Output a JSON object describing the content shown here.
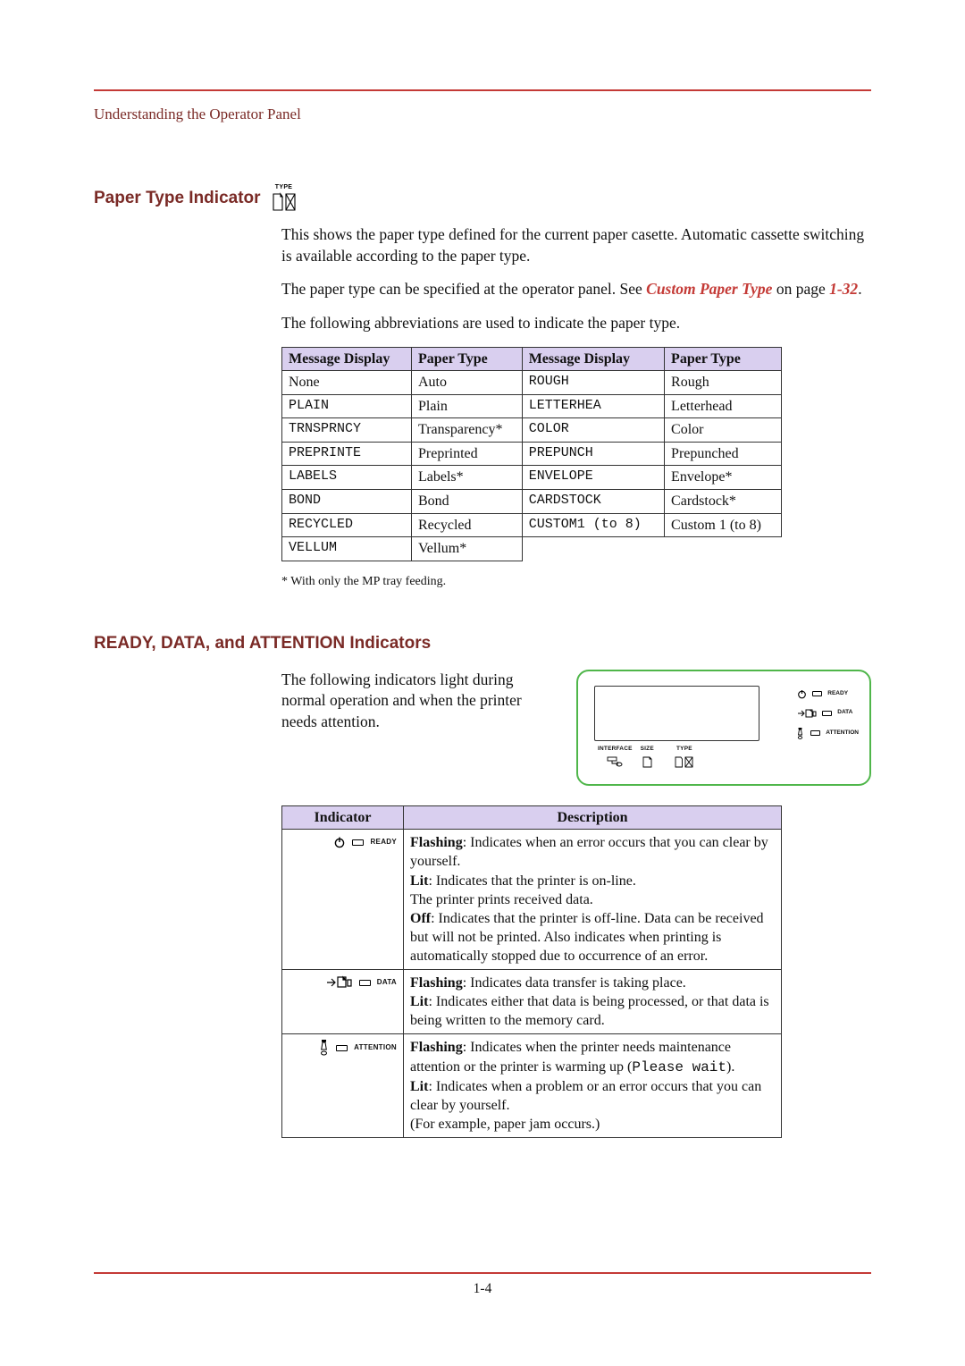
{
  "breadcrumb": "Understanding the Operator Panel",
  "section1": {
    "heading": "Paper Type Indicator",
    "icon_label": "TYPE",
    "p1": "This shows the paper type defined for the current paper casette. Automatic cassette switching is available according to the paper type.",
    "p2_a": "The paper type can be specified at the operator panel. See ",
    "p2_xref": "Custom Paper Type",
    "p2_b": " on page ",
    "p2_page": "1-32",
    "p2_c": ".",
    "p3": "The following abbreviations are used to indicate the paper type."
  },
  "paper_table": {
    "headers": [
      "Message Display",
      "Paper Type",
      "Message Display",
      "Paper Type"
    ],
    "rows": [
      [
        "None",
        "Auto",
        "ROUGH",
        "Rough"
      ],
      [
        "PLAIN",
        "Plain",
        "LETTERHEA",
        "Letterhead"
      ],
      [
        "TRNSPRNCY",
        "Transparency*",
        "COLOR",
        "Color"
      ],
      [
        "PREPRINTE",
        "Preprinted",
        "PREPUNCH",
        "Prepunched"
      ],
      [
        "LABELS",
        "Labels*",
        "ENVELOPE",
        "Envelope*"
      ],
      [
        "BOND",
        "Bond",
        "CARDSTOCK",
        "Cardstock*"
      ],
      [
        "RECYCLED",
        "Recycled",
        "CUSTOM1 (to 8)",
        "Custom 1 (to 8)"
      ],
      [
        "VELLUM",
        "Vellum*",
        "",
        ""
      ]
    ],
    "col0_plain_first": true,
    "footnote": "*    With only the MP tray feeding."
  },
  "section2": {
    "heading": "READY, DATA, and ATTENTION Indicators",
    "p1": "The following indicators light during normal operation and when the printer needs attention.",
    "panel": {
      "labels": {
        "interface": "INTERFACE",
        "size": "SIZE",
        "type": "TYPE"
      },
      "leds": {
        "ready": "READY",
        "data": "DATA",
        "attention": "ATTENTION"
      },
      "border_color": "#4fb64a"
    }
  },
  "ind_table": {
    "headers": [
      "Indicator",
      "Description"
    ],
    "rows": [
      {
        "label": "READY",
        "icon": "power-icon",
        "desc": {
          "parts": [
            {
              "b": "Flashing"
            },
            ": Indicates when an error occurs that you can clear by yourself.\n",
            {
              "b": "Lit"
            },
            ": Indicates that the printer is on-line.\nThe printer prints received data.\n",
            {
              "b": "Off"
            },
            ": Indicates that the printer is off-line. Data can be received but will not be printed. Also indicates when printing is automatically stopped due to occurrence of an error."
          ]
        }
      },
      {
        "label": "DATA",
        "icon": "data-icon",
        "desc": {
          "parts": [
            {
              "b": "Flashing"
            },
            ": Indicates data transfer is taking place.\n",
            {
              "b": "Lit"
            },
            ": Indicates either that data is being processed, or that data is being written to the memory card."
          ]
        }
      },
      {
        "label": "ATTENTION",
        "icon": "attention-icon",
        "desc": {
          "parts": [
            {
              "b": "Flashing"
            },
            ": Indicates when the printer needs maintenance attention or the printer is warming up (",
            {
              "mono": "Please wait"
            },
            ").\n",
            {
              "b": "Lit"
            },
            ": Indicates when a problem or an error occurs that you can clear by yourself.\n(For example, paper jam occurs.)"
          ]
        }
      }
    ]
  },
  "page_num": "1-4",
  "colors": {
    "rule": "#c43a36",
    "heading": "#7a2a26",
    "th_bg": "#d9cfef"
  }
}
